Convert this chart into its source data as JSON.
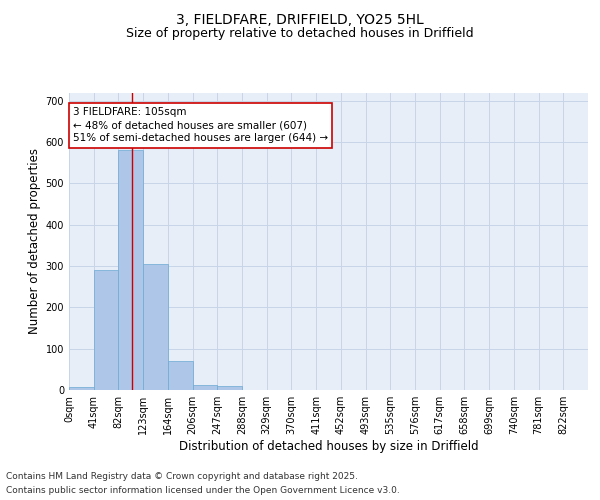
{
  "title_line1": "3, FIELDFARE, DRIFFIELD, YO25 5HL",
  "title_line2": "Size of property relative to detached houses in Driffield",
  "xlabel": "Distribution of detached houses by size in Driffield",
  "ylabel": "Number of detached properties",
  "bin_labels": [
    "0sqm",
    "41sqm",
    "82sqm",
    "123sqm",
    "164sqm",
    "206sqm",
    "247sqm",
    "288sqm",
    "329sqm",
    "370sqm",
    "411sqm",
    "452sqm",
    "493sqm",
    "535sqm",
    "576sqm",
    "617sqm",
    "658sqm",
    "699sqm",
    "740sqm",
    "781sqm",
    "822sqm"
  ],
  "bar_values": [
    8,
    290,
    580,
    305,
    70,
    13,
    10,
    0,
    0,
    0,
    0,
    0,
    0,
    0,
    0,
    0,
    0,
    0,
    0,
    0,
    0
  ],
  "bar_color": "#aec6e8",
  "bar_edge_color": "#6aaad4",
  "bar_width": 1.0,
  "ylim": [
    0,
    720
  ],
  "yticks": [
    0,
    100,
    200,
    300,
    400,
    500,
    600,
    700
  ],
  "red_line_x": 2.56,
  "annotation_text": "3 FIELDFARE: 105sqm\n← 48% of detached houses are smaller (607)\n51% of semi-detached houses are larger (644) →",
  "annotation_box_color": "#ffffff",
  "annotation_box_edge": "#cc0000",
  "annotation_text_color": "#000000",
  "red_line_color": "#cc0000",
  "grid_color": "#c8d4e8",
  "background_color": "#e8eef8",
  "footer_line1": "Contains HM Land Registry data © Crown copyright and database right 2025.",
  "footer_line2": "Contains public sector information licensed under the Open Government Licence v3.0.",
  "title_fontsize": 10,
  "subtitle_fontsize": 9,
  "axis_label_fontsize": 8.5,
  "tick_label_fontsize": 7,
  "footer_fontsize": 6.5,
  "annotation_fontsize": 7.5
}
